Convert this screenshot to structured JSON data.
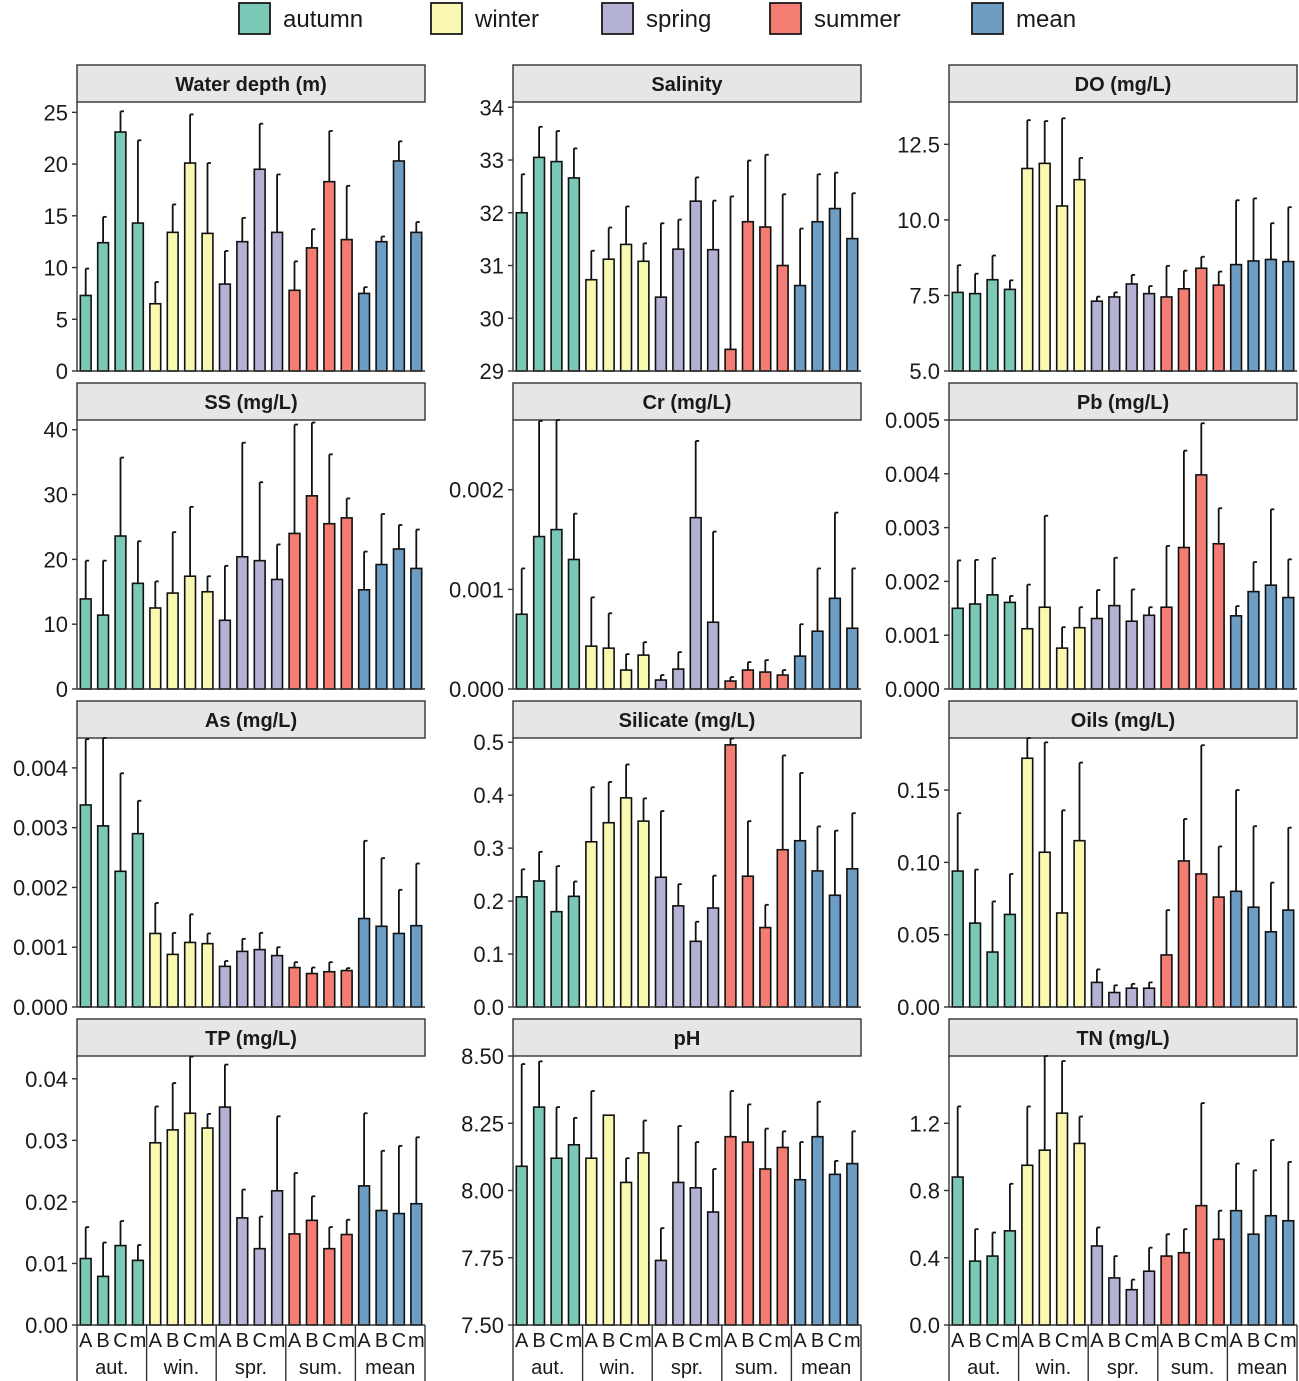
{
  "legend": {
    "position": "top",
    "items": [
      {
        "label": "autumn",
        "color": "#7BC8B6"
      },
      {
        "label": "winter",
        "color": "#FAF7B0"
      },
      {
        "label": "spring",
        "color": "#B3B2D4"
      },
      {
        "label": "summer",
        "color": "#F47D73"
      },
      {
        "label": "mean",
        "color": "#6E9DC4"
      }
    ]
  },
  "x_axis": {
    "tick_labels": [
      "A",
      "B",
      "C",
      "m"
    ],
    "group_labels": [
      "aut.",
      "win.",
      "spr.",
      "sum.",
      "mean"
    ]
  },
  "chart_data": [
    {
      "type": "bar",
      "title": "Water depth (m)",
      "ylim": [
        0,
        26
      ],
      "yticks": [
        "0",
        "5",
        "10",
        "15",
        "20",
        "25"
      ],
      "ytick_values": [
        0,
        5,
        10,
        15,
        20,
        25
      ],
      "values": [
        7.3,
        12.4,
        23.1,
        14.3,
        6.5,
        13.4,
        20.1,
        13.3,
        8.4,
        12.5,
        19.5,
        13.4,
        7.8,
        11.9,
        18.3,
        12.7,
        7.5,
        12.5,
        20.3,
        13.4
      ],
      "errors": [
        2.6,
        2.5,
        2.0,
        8.0,
        2.1,
        2.7,
        4.7,
        6.8,
        3.2,
        2.3,
        4.4,
        5.6,
        2.8,
        1.8,
        4.9,
        5.2,
        0.6,
        0.5,
        1.9,
        1.0
      ]
    },
    {
      "type": "bar",
      "title": "Salinity",
      "ylim": [
        29,
        34.1
      ],
      "yticks": [
        "29",
        "30",
        "31",
        "32",
        "33",
        "34"
      ],
      "ytick_values": [
        29,
        30,
        31,
        32,
        33,
        34
      ],
      "values": [
        32.0,
        33.05,
        32.97,
        32.66,
        30.73,
        31.12,
        31.4,
        31.08,
        30.4,
        31.31,
        32.22,
        31.3,
        29.41,
        31.83,
        31.73,
        31.0,
        30.62,
        31.83,
        32.08,
        31.51
      ],
      "errors": [
        0.73,
        0.58,
        0.58,
        0.56,
        0.55,
        0.6,
        0.72,
        0.34,
        1.4,
        0.56,
        0.45,
        0.93,
        2.9,
        1.16,
        1.37,
        1.35,
        1.08,
        0.9,
        0.68,
        0.86
      ]
    },
    {
      "type": "bar",
      "title": "DO (mg/L)",
      "ylim": [
        5,
        13.9
      ],
      "yticks": [
        "5.0",
        "7.5",
        "10.0",
        "12.5"
      ],
      "ytick_values": [
        5,
        7.5,
        10,
        12.5
      ],
      "values": [
        7.6,
        7.56,
        8.02,
        7.7,
        11.7,
        11.87,
        10.46,
        11.33,
        7.31,
        7.45,
        7.88,
        7.56,
        7.45,
        7.72,
        8.4,
        7.84,
        8.52,
        8.64,
        8.69,
        8.62
      ],
      "errors": [
        0.9,
        0.66,
        0.8,
        0.3,
        1.6,
        1.4,
        2.9,
        0.72,
        0.15,
        0.15,
        0.3,
        0.25,
        1.03,
        0.6,
        0.38,
        0.45,
        2.13,
        2.07,
        1.2,
        1.8
      ]
    },
    {
      "type": "bar",
      "title": "SS (mg/L)",
      "ylim": [
        0,
        41.5
      ],
      "yticks": [
        "0",
        "10",
        "20",
        "30",
        "40"
      ],
      "ytick_values": [
        0,
        10,
        20,
        30,
        40
      ],
      "values": [
        13.9,
        11.4,
        23.6,
        16.3,
        12.5,
        14.8,
        17.4,
        15.0,
        10.6,
        20.4,
        19.8,
        16.9,
        24.0,
        29.8,
        25.5,
        26.4,
        15.3,
        19.2,
        21.6,
        18.6
      ],
      "errors": [
        5.9,
        8.4,
        12.1,
        6.5,
        4.1,
        9.4,
        10.7,
        2.4,
        8.4,
        17.6,
        12.1,
        5.4,
        16.8,
        11.3,
        10.7,
        3.0,
        5.9,
        7.8,
        3.7,
        6.0
      ]
    },
    {
      "type": "bar",
      "title": "Cr (mg/L)",
      "ylim": [
        0,
        0.0027
      ],
      "yticks": [
        "0.000",
        "0.001",
        "0.002"
      ],
      "ytick_values": [
        0,
        0.001,
        0.002
      ],
      "values": [
        0.00075,
        0.00153,
        0.0016,
        0.0013,
        0.00043,
        0.00041,
        0.00019,
        0.00034,
        9e-05,
        0.0002,
        0.00172,
        0.00067,
        8e-05,
        0.00019,
        0.00017,
        0.00014,
        0.00033,
        0.00058,
        0.00091,
        0.00061
      ],
      "errors": [
        0.00046,
        0.00116,
        0.0011,
        0.00046,
        0.00049,
        0.00035,
        0.00016,
        0.00013,
        5e-05,
        0.00017,
        0.00077,
        0.00091,
        4e-05,
        8e-05,
        0.00012,
        5e-05,
        0.00032,
        0.00063,
        0.00086,
        0.0006
      ]
    },
    {
      "type": "bar",
      "title": "Pb (mg/L)",
      "ylim": [
        0,
        0.005
      ],
      "yticks": [
        "0.000",
        "0.001",
        "0.002",
        "0.003",
        "0.004",
        "0.005"
      ],
      "ytick_values": [
        0,
        0.001,
        0.002,
        0.003,
        0.004,
        0.005
      ],
      "values": [
        0.0015,
        0.00158,
        0.00175,
        0.00161,
        0.00112,
        0.00152,
        0.00076,
        0.00114,
        0.00131,
        0.00155,
        0.00126,
        0.00137,
        0.00152,
        0.00263,
        0.00398,
        0.0027,
        0.00136,
        0.00181,
        0.00193,
        0.0017
      ],
      "errors": [
        0.00089,
        0.00082,
        0.00068,
        0.00012,
        0.00082,
        0.0017,
        0.00039,
        0.00038,
        0.00053,
        0.00089,
        0.00059,
        0.00015,
        0.00114,
        0.0018,
        0.00096,
        0.00066,
        0.00018,
        0.00055,
        0.00141,
        0.00071
      ]
    },
    {
      "type": "bar",
      "title": "As (mg/L)",
      "ylim": [
        0,
        0.0045
      ],
      "yticks": [
        "0.000",
        "0.001",
        "0.002",
        "0.003",
        "0.004"
      ],
      "ytick_values": [
        0,
        0.001,
        0.002,
        0.003,
        0.004
      ],
      "values": [
        0.00338,
        0.00303,
        0.00227,
        0.0029,
        0.00123,
        0.00088,
        0.00108,
        0.00106,
        0.00068,
        0.00093,
        0.00096,
        0.00086,
        0.00066,
        0.00056,
        0.00059,
        0.00061,
        0.00148,
        0.00135,
        0.00123,
        0.00136
      ],
      "errors": [
        0.0011,
        0.00147,
        0.00164,
        0.00055,
        0.00051,
        0.00036,
        0.00047,
        0.00017,
        9e-05,
        0.00021,
        0.00028,
        0.00014,
        9e-05,
        0.0001,
        0.00016,
        4e-05,
        0.0013,
        0.00114,
        0.00073,
        0.00104
      ]
    },
    {
      "type": "bar",
      "title": "Silicate (mg/L)",
      "ylim": [
        0,
        0.508
      ],
      "yticks": [
        "0.0",
        "0.1",
        "0.2",
        "0.3",
        "0.4",
        "0.5"
      ],
      "ytick_values": [
        0,
        0.1,
        0.2,
        0.3,
        0.4,
        0.5
      ],
      "values": [
        0.208,
        0.238,
        0.18,
        0.209,
        0.312,
        0.348,
        0.395,
        0.351,
        0.245,
        0.191,
        0.124,
        0.187,
        0.495,
        0.247,
        0.15,
        0.297,
        0.314,
        0.257,
        0.211,
        0.261
      ],
      "errors": [
        0.052,
        0.055,
        0.086,
        0.028,
        0.103,
        0.077,
        0.063,
        0.043,
        0.125,
        0.041,
        0.037,
        0.061,
        0.012,
        0.104,
        0.043,
        0.178,
        0.128,
        0.084,
        0.122,
        0.105
      ]
    },
    {
      "type": "bar",
      "title": "Oils (mg/L)",
      "ylim": [
        0,
        0.186
      ],
      "yticks": [
        "0.00",
        "0.05",
        "0.10",
        "0.15"
      ],
      "ytick_values": [
        0,
        0.05,
        0.1,
        0.15
      ],
      "values": [
        0.094,
        0.058,
        0.038,
        0.064,
        0.172,
        0.107,
        0.065,
        0.115,
        0.017,
        0.01,
        0.013,
        0.013,
        0.036,
        0.101,
        0.092,
        0.076,
        0.08,
        0.069,
        0.052,
        0.067
      ],
      "errors": [
        0.04,
        0.037,
        0.035,
        0.028,
        0.014,
        0.076,
        0.071,
        0.054,
        0.009,
        0.005,
        0.003,
        0.004,
        0.031,
        0.029,
        0.089,
        0.035,
        0.07,
        0.056,
        0.034,
        0.057
      ]
    },
    {
      "type": "bar",
      "title": "TP (mg/L)",
      "ylim": [
        0,
        0.0437
      ],
      "yticks": [
        "0.00",
        "0.01",
        "0.02",
        "0.03",
        "0.04"
      ],
      "ytick_values": [
        0,
        0.01,
        0.02,
        0.03,
        0.04
      ],
      "values": [
        0.0108,
        0.0079,
        0.0129,
        0.0105,
        0.0296,
        0.0317,
        0.0344,
        0.032,
        0.0354,
        0.0174,
        0.0124,
        0.0218,
        0.0148,
        0.017,
        0.0124,
        0.0147,
        0.0226,
        0.0186,
        0.0181,
        0.0197
      ],
      "errors": [
        0.0051,
        0.0055,
        0.004,
        0.0025,
        0.0059,
        0.0076,
        0.0092,
        0.0023,
        0.0069,
        0.0046,
        0.0052,
        0.0121,
        0.0099,
        0.0039,
        0.0035,
        0.0024,
        0.0118,
        0.0097,
        0.011,
        0.0108
      ]
    },
    {
      "type": "bar",
      "title": "pH",
      "ylim": [
        7.5,
        8.5
      ],
      "yticks": [
        "7.50",
        "7.75",
        "8.00",
        "8.25",
        "8.50"
      ],
      "ytick_values": [
        7.5,
        7.75,
        8.0,
        8.25,
        8.5
      ],
      "values": [
        8.09,
        8.31,
        8.12,
        8.17,
        8.12,
        8.28,
        8.03,
        8.14,
        7.74,
        8.03,
        8.01,
        7.92,
        8.2,
        8.18,
        8.08,
        8.16,
        8.04,
        8.2,
        8.06,
        8.1
      ],
      "errors": [
        0.38,
        0.17,
        0.19,
        0.1,
        0.25,
        0.0,
        0.09,
        0.12,
        0.12,
        0.21,
        0.17,
        0.16,
        0.17,
        0.14,
        0.15,
        0.06,
        0.14,
        0.13,
        0.05,
        0.12
      ]
    },
    {
      "type": "bar",
      "title": "TN (mg/L)",
      "ylim": [
        0,
        1.6
      ],
      "yticks": [
        "0.0",
        "0.4",
        "0.8",
        "1.2"
      ],
      "ytick_values": [
        0,
        0.4,
        0.8,
        1.2
      ],
      "values": [
        0.88,
        0.38,
        0.41,
        0.56,
        0.95,
        1.04,
        1.26,
        1.08,
        0.47,
        0.28,
        0.21,
        0.32,
        0.41,
        0.43,
        0.71,
        0.51,
        0.68,
        0.54,
        0.65,
        0.62
      ],
      "errors": [
        0.42,
        0.19,
        0.14,
        0.28,
        0.35,
        0.56,
        0.31,
        0.16,
        0.11,
        0.13,
        0.06,
        0.14,
        0.13,
        0.14,
        0.61,
        0.17,
        0.28,
        0.38,
        0.45,
        0.35
      ]
    }
  ]
}
